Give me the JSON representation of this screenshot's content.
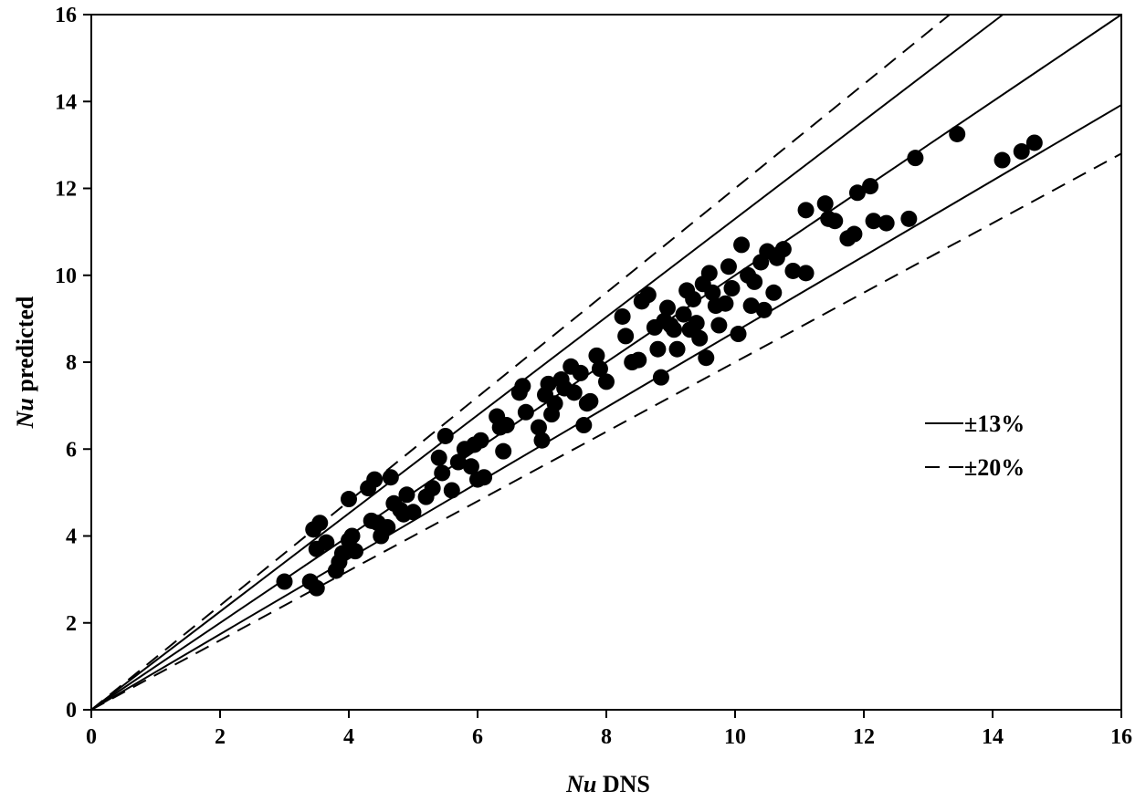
{
  "chart_data": {
    "type": "scatter",
    "xlabel_italic": "Nu",
    "xlabel_rest": " DNS",
    "ylabel_italic": "Nu",
    "ylabel_rest": " predicted",
    "xlim": [
      0,
      16
    ],
    "ylim": [
      0,
      16
    ],
    "xticks": [
      "0",
      "2",
      "4",
      "6",
      "8",
      "10",
      "12",
      "14",
      "16"
    ],
    "yticks": [
      "0",
      "2",
      "4",
      "6",
      "8",
      "10",
      "12",
      "14",
      "16"
    ],
    "grid": false,
    "legend_position": "right",
    "reference_lines": [
      {
        "label": "±13%",
        "style": "solid",
        "slopes": [
          1.13,
          0.87
        ]
      },
      {
        "label": "±20%",
        "style": "dashed",
        "slopes": [
          1.2,
          0.8
        ]
      }
    ],
    "parity_line_slope": 1.0,
    "marker_color": "#000000",
    "points": [
      [
        3.0,
        2.95
      ],
      [
        3.4,
        2.95
      ],
      [
        3.5,
        2.8
      ],
      [
        3.45,
        4.15
      ],
      [
        3.55,
        4.3
      ],
      [
        3.5,
        3.7
      ],
      [
        3.65,
        3.85
      ],
      [
        3.8,
        3.2
      ],
      [
        3.85,
        3.4
      ],
      [
        3.9,
        3.6
      ],
      [
        4.0,
        3.9
      ],
      [
        4.05,
        4.0
      ],
      [
        4.1,
        3.65
      ],
      [
        4.0,
        4.85
      ],
      [
        4.3,
        5.1
      ],
      [
        4.4,
        5.3
      ],
      [
        4.35,
        4.35
      ],
      [
        4.45,
        4.3
      ],
      [
        4.5,
        4.0
      ],
      [
        4.6,
        4.2
      ],
      [
        4.65,
        5.35
      ],
      [
        4.7,
        4.75
      ],
      [
        4.8,
        4.6
      ],
      [
        4.85,
        4.5
      ],
      [
        4.9,
        4.95
      ],
      [
        5.0,
        4.55
      ],
      [
        5.2,
        4.9
      ],
      [
        5.3,
        5.1
      ],
      [
        5.4,
        5.8
      ],
      [
        5.5,
        6.3
      ],
      [
        5.45,
        5.45
      ],
      [
        5.6,
        5.05
      ],
      [
        5.7,
        5.7
      ],
      [
        5.8,
        6.0
      ],
      [
        5.9,
        5.6
      ],
      [
        5.95,
        6.1
      ],
      [
        6.0,
        5.3
      ],
      [
        6.05,
        6.2
      ],
      [
        6.1,
        5.35
      ],
      [
        6.3,
        6.75
      ],
      [
        6.35,
        6.5
      ],
      [
        6.4,
        5.95
      ],
      [
        6.45,
        6.55
      ],
      [
        6.65,
        7.3
      ],
      [
        6.7,
        7.45
      ],
      [
        6.75,
        6.85
      ],
      [
        6.95,
        6.5
      ],
      [
        7.0,
        6.2
      ],
      [
        7.05,
        7.25
      ],
      [
        7.1,
        7.5
      ],
      [
        7.15,
        6.8
      ],
      [
        7.2,
        7.05
      ],
      [
        7.3,
        7.6
      ],
      [
        7.35,
        7.4
      ],
      [
        7.45,
        7.9
      ],
      [
        7.5,
        7.3
      ],
      [
        7.6,
        7.75
      ],
      [
        7.65,
        6.55
      ],
      [
        7.7,
        7.05
      ],
      [
        7.75,
        7.1
      ],
      [
        7.85,
        8.15
      ],
      [
        7.9,
        7.85
      ],
      [
        8.0,
        7.55
      ],
      [
        8.25,
        9.05
      ],
      [
        8.3,
        8.6
      ],
      [
        8.4,
        8.0
      ],
      [
        8.5,
        8.05
      ],
      [
        8.55,
        9.4
      ],
      [
        8.65,
        9.55
      ],
      [
        8.75,
        8.8
      ],
      [
        8.8,
        8.3
      ],
      [
        8.85,
        7.65
      ],
      [
        8.9,
        8.95
      ],
      [
        8.95,
        9.25
      ],
      [
        9.0,
        8.85
      ],
      [
        9.05,
        8.75
      ],
      [
        9.1,
        8.3
      ],
      [
        9.2,
        9.1
      ],
      [
        9.25,
        9.65
      ],
      [
        9.3,
        8.75
      ],
      [
        9.35,
        9.45
      ],
      [
        9.4,
        8.9
      ],
      [
        9.45,
        8.55
      ],
      [
        9.5,
        9.8
      ],
      [
        9.55,
        8.1
      ],
      [
        9.6,
        10.05
      ],
      [
        9.65,
        9.6
      ],
      [
        9.7,
        9.3
      ],
      [
        9.75,
        8.85
      ],
      [
        9.85,
        9.35
      ],
      [
        9.9,
        10.2
      ],
      [
        9.95,
        9.7
      ],
      [
        10.05,
        8.65
      ],
      [
        10.1,
        10.7
      ],
      [
        10.2,
        10.0
      ],
      [
        10.25,
        9.3
      ],
      [
        10.3,
        9.85
      ],
      [
        10.4,
        10.3
      ],
      [
        10.45,
        9.2
      ],
      [
        10.5,
        10.55
      ],
      [
        10.6,
        9.6
      ],
      [
        10.65,
        10.4
      ],
      [
        10.75,
        10.6
      ],
      [
        10.9,
        10.1
      ],
      [
        11.1,
        10.05
      ],
      [
        11.1,
        11.5
      ],
      [
        11.4,
        11.65
      ],
      [
        11.45,
        11.3
      ],
      [
        11.55,
        11.25
      ],
      [
        11.75,
        10.85
      ],
      [
        11.85,
        10.95
      ],
      [
        11.9,
        11.9
      ],
      [
        12.1,
        12.05
      ],
      [
        12.15,
        11.25
      ],
      [
        12.35,
        11.2
      ],
      [
        12.7,
        11.3
      ],
      [
        12.8,
        12.7
      ],
      [
        13.45,
        13.25
      ],
      [
        14.15,
        12.65
      ],
      [
        14.45,
        12.85
      ],
      [
        14.65,
        13.05
      ]
    ]
  }
}
